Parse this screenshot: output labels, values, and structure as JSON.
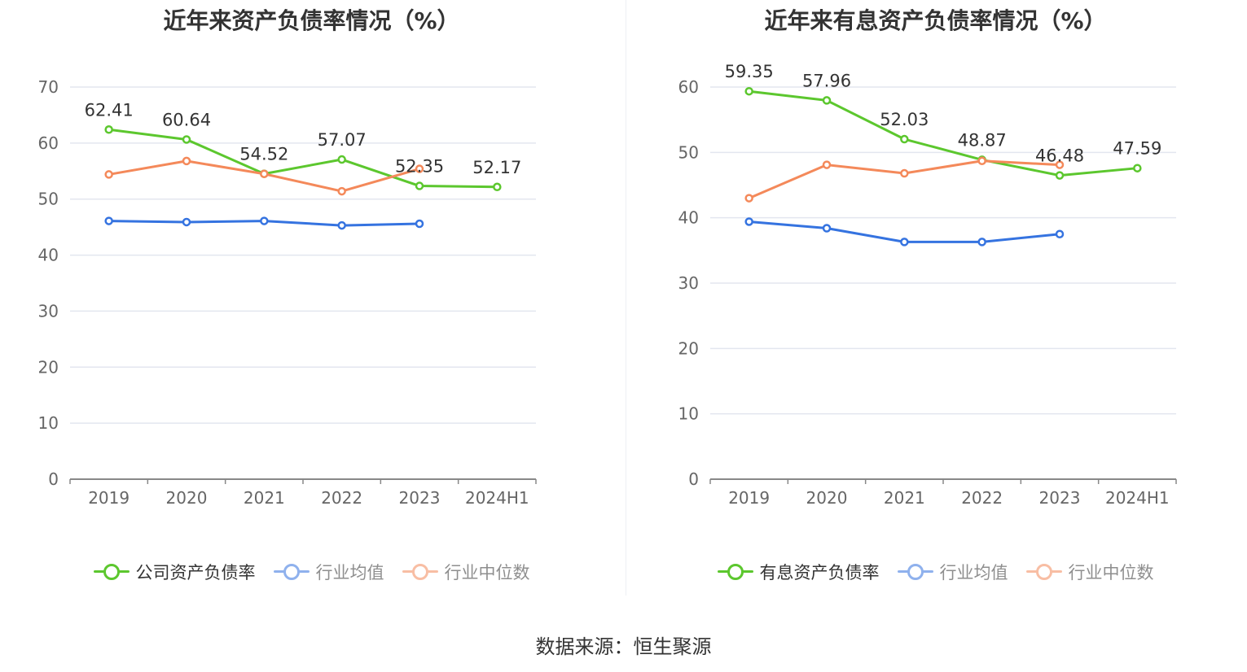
{
  "colors": {
    "company": "#5cc72e",
    "industry_avg": "#3573e0",
    "industry_median": "#f4895a",
    "grid": "#e3e6ef",
    "axis": "#888888",
    "label": "#333333",
    "tick": "#666666"
  },
  "charts": {
    "left": {
      "title": "近年来资产负债率情况（%）",
      "legend": [
        "公司资产负债率",
        "行业均值",
        "行业中位数"
      ]
    },
    "right": {
      "title": "近年来有息资产负债率情况（%）",
      "legend": [
        "有息资产负债率",
        "行业均值",
        "行业中位数"
      ]
    }
  },
  "source": "数据来源：恒生聚源",
  "chart_data": [
    {
      "type": "line",
      "title": "近年来资产负债率情况（%）",
      "categories": [
        "2019",
        "2020",
        "2021",
        "2022",
        "2023",
        "2024H1"
      ],
      "ylim": [
        0,
        70
      ],
      "yticks": [
        0,
        10,
        20,
        30,
        40,
        50,
        60,
        70
      ],
      "grid": true,
      "legend_position": "bottom",
      "series": [
        {
          "name": "公司资产负债率",
          "values": [
            62.41,
            60.64,
            54.52,
            57.07,
            52.35,
            52.17
          ],
          "labels": [
            "62.41",
            "60.64",
            "54.52",
            "57.07",
            "52.35",
            "52.17"
          ]
        },
        {
          "name": "行业均值",
          "values": [
            46.1,
            45.9,
            46.1,
            45.3,
            45.6,
            null
          ]
        },
        {
          "name": "行业中位数",
          "values": [
            54.4,
            56.8,
            54.5,
            51.4,
            55.4,
            null
          ]
        }
      ]
    },
    {
      "type": "line",
      "title": "近年来有息资产负债率情况（%）",
      "categories": [
        "2019",
        "2020",
        "2021",
        "2022",
        "2023",
        "2024H1"
      ],
      "ylim": [
        0,
        60
      ],
      "yticks": [
        0,
        10,
        20,
        30,
        40,
        50,
        60
      ],
      "grid": true,
      "legend_position": "bottom",
      "series": [
        {
          "name": "有息资产负债率",
          "values": [
            59.35,
            57.96,
            52.03,
            48.87,
            46.48,
            47.59
          ],
          "labels": [
            "59.35",
            "57.96",
            "52.03",
            "48.87",
            "46.48",
            "47.59"
          ]
        },
        {
          "name": "行业均值",
          "values": [
            39.4,
            38.4,
            36.3,
            36.3,
            37.5,
            null
          ]
        },
        {
          "name": "行业中位数",
          "values": [
            43.0,
            48.1,
            46.8,
            48.7,
            48.1,
            null
          ]
        }
      ]
    }
  ]
}
